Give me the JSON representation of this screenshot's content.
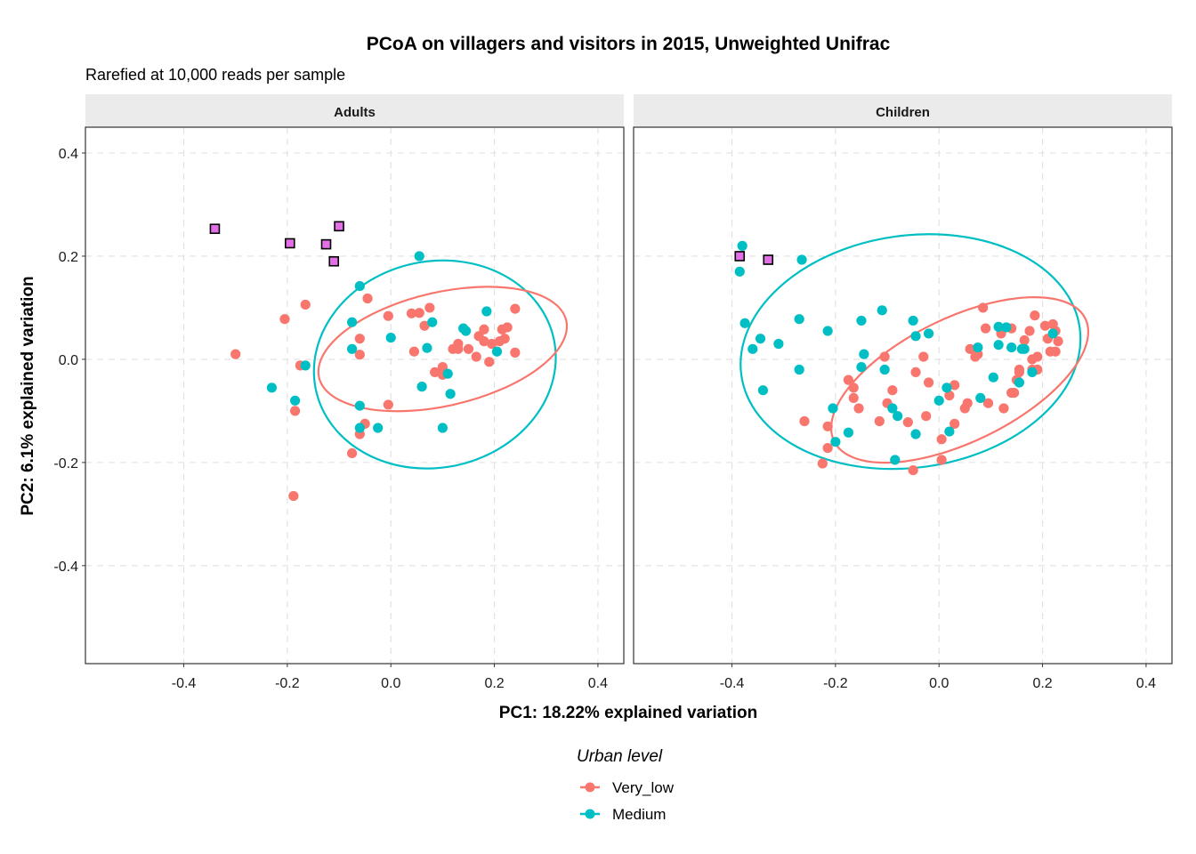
{
  "title": "PCoA on villagers and visitors in 2015, Unweighted Unifrac",
  "subtitle": "Rarefied at 10,000 reads per sample",
  "colors": {
    "very_low": "#F8766D",
    "medium": "#00BFC4",
    "visitor": "#E36FE6",
    "strip": "#EBEBEB",
    "grid": "#E0E0E0"
  },
  "chart_data": {
    "type": "scatter",
    "xlabel": "PC1: 18.22% explained variation",
    "ylabel": "PC2: 6.1% explained variation",
    "xlim": [
      -0.59,
      0.45
    ],
    "ylim": [
      -0.59,
      0.45
    ],
    "x_ticks": [
      "-0.4",
      "-0.2",
      "0.0",
      "0.2",
      "0.4"
    ],
    "y_ticks": [
      "0.4",
      "0.2",
      "0.0",
      "-0.2",
      "-0.4"
    ],
    "x_tick_values": [
      -0.4,
      -0.2,
      0.0,
      0.2,
      0.4
    ],
    "y_tick_values": [
      0.4,
      0.2,
      0.0,
      -0.2,
      -0.4
    ],
    "grid": true,
    "grid_style": "dashed",
    "legend": {
      "title": "Urban level",
      "placement": "bottom",
      "entries": [
        {
          "label": "Very_low",
          "color_key": "very_low"
        },
        {
          "label": "Medium",
          "color_key": "medium"
        }
      ]
    },
    "panels": [
      {
        "name": "Adults",
        "series": [
          {
            "name": "Very_low",
            "color_key": "very_low",
            "points": [
              [
                -0.3,
                0.01
              ],
              [
                -0.205,
                0.078
              ],
              [
                -0.165,
                0.106
              ],
              [
                -0.175,
                -0.012
              ],
              [
                -0.185,
                -0.1
              ],
              [
                -0.188,
                -0.265
              ],
              [
                -0.06,
                0.04
              ],
              [
                -0.06,
                0.009
              ],
              [
                -0.045,
                0.118
              ],
              [
                -0.005,
                0.084
              ],
              [
                -0.06,
                -0.145
              ],
              [
                -0.05,
                -0.125
              ],
              [
                -0.075,
                -0.182
              ],
              [
                -0.005,
                -0.088
              ],
              [
                0.04,
                0.089
              ],
              [
                0.055,
                0.09
              ],
              [
                0.075,
                0.1
              ],
              [
                0.065,
                0.065
              ],
              [
                0.045,
                0.015
              ],
              [
                0.085,
                -0.025
              ],
              [
                0.1,
                -0.015
              ],
              [
                0.1,
                -0.03
              ],
              [
                0.12,
                0.02
              ],
              [
                0.13,
                0.03
              ],
              [
                0.13,
                0.02
              ],
              [
                0.15,
                0.02
              ],
              [
                0.165,
                0.005
              ],
              [
                0.17,
                0.045
              ],
              [
                0.18,
                0.058
              ],
              [
                0.18,
                0.035
              ],
              [
                0.195,
                0.03
              ],
              [
                0.19,
                -0.005
              ],
              [
                0.21,
                0.035
              ],
              [
                0.215,
                0.058
              ],
              [
                0.22,
                0.04
              ],
              [
                0.225,
                0.062
              ],
              [
                0.24,
                0.098
              ],
              [
                0.24,
                0.013
              ]
            ]
          },
          {
            "name": "Medium",
            "color_key": "medium",
            "points": [
              [
                0.055,
                0.2
              ],
              [
                -0.06,
                0.142
              ],
              [
                -0.075,
                0.072
              ],
              [
                -0.075,
                0.02
              ],
              [
                0.0,
                0.042
              ],
              [
                0.08,
                0.072
              ],
              [
                0.07,
                0.022
              ],
              [
                0.14,
                0.06
              ],
              [
                0.145,
                0.055
              ],
              [
                0.185,
                0.093
              ],
              [
                0.205,
                0.015
              ],
              [
                0.06,
                -0.053
              ],
              [
                0.11,
                -0.028
              ],
              [
                0.115,
                -0.067
              ],
              [
                0.1,
                -0.133
              ],
              [
                -0.23,
                -0.055
              ],
              [
                -0.185,
                -0.08
              ],
              [
                -0.165,
                -0.012
              ],
              [
                -0.06,
                -0.09
              ],
              [
                -0.06,
                -0.133
              ],
              [
                -0.025,
                -0.133
              ]
            ]
          },
          {
            "name": "",
            "color_key": "visitor",
            "shape": "square",
            "points": [
              [
                -0.34,
                0.253
              ],
              [
                -0.195,
                0.225
              ],
              [
                -0.125,
                0.223
              ],
              [
                -0.1,
                0.258
              ],
              [
                -0.11,
                0.19
              ]
            ]
          }
        ],
        "ellipses": [
          {
            "color_key": "medium",
            "center": [
              0.085,
              -0.01
            ],
            "radii": [
              0.235,
              0.2
            ],
            "rotation_deg": 12
          },
          {
            "color_key": "very_low",
            "center": [
              0.1,
              0.02
            ],
            "radii": [
              0.245,
              0.11
            ],
            "rotation_deg": 13
          }
        ]
      },
      {
        "name": "Children",
        "series": [
          {
            "name": "Very_low",
            "color_key": "very_low",
            "points": [
              [
                -0.225,
                -0.202
              ],
              [
                -0.215,
                -0.172
              ],
              [
                -0.215,
                -0.13
              ],
              [
                -0.26,
                -0.12
              ],
              [
                -0.175,
                -0.04
              ],
              [
                -0.165,
                -0.055
              ],
              [
                -0.165,
                -0.075
              ],
              [
                -0.155,
                -0.095
              ],
              [
                -0.115,
                -0.12
              ],
              [
                -0.105,
                0.005
              ],
              [
                -0.09,
                -0.06
              ],
              [
                -0.1,
                -0.085
              ],
              [
                -0.06,
                -0.122
              ],
              [
                -0.045,
                -0.025
              ],
              [
                -0.03,
                0.005
              ],
              [
                -0.02,
                -0.045
              ],
              [
                -0.025,
                -0.11
              ],
              [
                0.005,
                -0.155
              ],
              [
                0.005,
                -0.195
              ],
              [
                0.03,
                -0.05
              ],
              [
                0.03,
                -0.125
              ],
              [
                0.05,
                -0.095
              ],
              [
                0.055,
                -0.085
              ],
              [
                0.06,
                0.02
              ],
              [
                0.07,
                0.005
              ],
              [
                0.075,
                0.01
              ],
              [
                0.085,
                0.1
              ],
              [
                0.09,
                0.06
              ],
              [
                0.095,
                -0.085
              ],
              [
                0.12,
                0.05
              ],
              [
                0.125,
                -0.095
              ],
              [
                0.14,
                -0.065
              ],
              [
                0.14,
                0.06
              ],
              [
                0.145,
                -0.065
              ],
              [
                0.15,
                -0.04
              ],
              [
                0.155,
                -0.025
              ],
              [
                0.155,
                -0.02
              ],
              [
                0.165,
                0.037
              ],
              [
                0.175,
                0.055
              ],
              [
                0.18,
                0.0
              ],
              [
                0.18,
                -0.02
              ],
              [
                0.185,
                0.085
              ],
              [
                0.19,
                0.005
              ],
              [
                0.19,
                -0.02
              ],
              [
                0.205,
                0.065
              ],
              [
                0.21,
                0.04
              ],
              [
                0.215,
                0.015
              ],
              [
                0.22,
                0.068
              ],
              [
                0.225,
                0.055
              ],
              [
                0.225,
                0.015
              ],
              [
                0.23,
                0.035
              ],
              [
                -0.05,
                -0.215
              ],
              [
                0.02,
                -0.07
              ]
            ]
          },
          {
            "name": "Medium",
            "color_key": "medium",
            "points": [
              [
                -0.38,
                0.22
              ],
              [
                -0.385,
                0.17
              ],
              [
                -0.375,
                0.07
              ],
              [
                -0.36,
                0.02
              ],
              [
                -0.345,
                0.04
              ],
              [
                -0.31,
                0.03
              ],
              [
                -0.34,
                -0.06
              ],
              [
                -0.27,
                0.078
              ],
              [
                -0.265,
                0.193
              ],
              [
                -0.27,
                -0.02
              ],
              [
                -0.215,
                0.055
              ],
              [
                -0.205,
                -0.095
              ],
              [
                -0.2,
                -0.16
              ],
              [
                -0.175,
                -0.142
              ],
              [
                -0.15,
                0.075
              ],
              [
                -0.145,
                0.01
              ],
              [
                -0.15,
                -0.015
              ],
              [
                -0.11,
                0.095
              ],
              [
                -0.105,
                -0.02
              ],
              [
                -0.09,
                -0.095
              ],
              [
                -0.08,
                -0.11
              ],
              [
                -0.085,
                -0.195
              ],
              [
                -0.05,
                0.075
              ],
              [
                -0.045,
                0.045
              ],
              [
                -0.02,
                0.05
              ],
              [
                -0.045,
                -0.145
              ],
              [
                0.0,
                -0.08
              ],
              [
                0.015,
                -0.055
              ],
              [
                0.02,
                -0.14
              ],
              [
                0.075,
                0.023
              ],
              [
                0.08,
                -0.075
              ],
              [
                0.105,
                -0.035
              ],
              [
                0.115,
                0.063
              ],
              [
                0.115,
                0.028
              ],
              [
                0.13,
                0.062
              ],
              [
                0.14,
                0.023
              ],
              [
                0.155,
                -0.045
              ],
              [
                0.16,
                0.02
              ],
              [
                0.165,
                0.02
              ],
              [
                0.18,
                -0.025
              ],
              [
                0.22,
                0.05
              ]
            ]
          },
          {
            "name": "",
            "color_key": "visitor",
            "shape": "square",
            "points": [
              [
                -0.385,
                0.2
              ],
              [
                -0.33,
                0.193
              ]
            ]
          }
        ],
        "ellipses": [
          {
            "color_key": "medium",
            "center": [
              -0.055,
              0.015
            ],
            "radii": [
              0.33,
              0.225
            ],
            "rotation_deg": 8
          },
          {
            "color_key": "very_low",
            "center": [
              0.04,
              -0.04
            ],
            "radii": [
              0.27,
              0.12
            ],
            "rotation_deg": 26
          }
        ]
      }
    ]
  }
}
